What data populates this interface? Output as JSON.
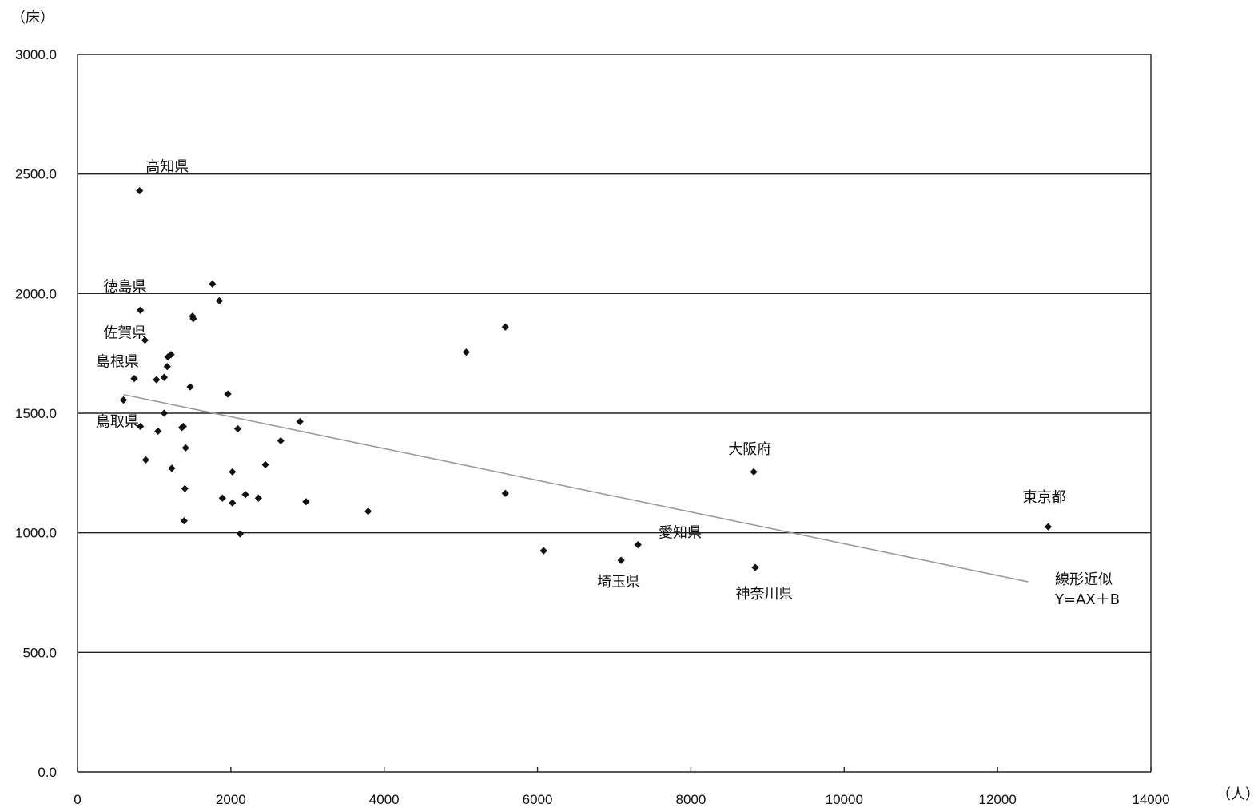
{
  "chart_data": {
    "type": "scatter",
    "y_unit": "（床）",
    "x_unit": "（人）",
    "xlim": [
      0,
      14000
    ],
    "ylim": [
      0,
      3000
    ],
    "x_ticks": [
      "0",
      "2000",
      "4000",
      "6000",
      "8000",
      "10000",
      "12000",
      "14000"
    ],
    "y_ticks": [
      "0.0",
      "500.0",
      "1000.0",
      "1500.0",
      "2000.0",
      "2500.0",
      "3000.0"
    ],
    "y_tick_values": [
      0,
      500,
      1000,
      1500,
      2000,
      2500,
      3000
    ],
    "x_tick_values": [
      0,
      2000,
      4000,
      6000,
      8000,
      10000,
      12000,
      14000
    ],
    "grid": "horizontal",
    "trendline": {
      "label_line1": "線形近似",
      "label_line2": "Y=AX＋B",
      "start": [
        600,
        1578
      ],
      "end": [
        12400,
        795
      ]
    },
    "points": [
      [
        810,
        2430
      ],
      [
        820,
        1930
      ],
      [
        880,
        1805
      ],
      [
        740,
        1645
      ],
      [
        600,
        1555
      ],
      [
        820,
        1445
      ],
      [
        890,
        1305
      ],
      [
        1030,
        1640
      ],
      [
        1130,
        1650
      ],
      [
        1170,
        1695
      ],
      [
        1180,
        1735
      ],
      [
        1220,
        1745
      ],
      [
        1130,
        1500
      ],
      [
        1050,
        1425
      ],
      [
        1230,
        1270
      ],
      [
        1360,
        1440
      ],
      [
        1380,
        1445
      ],
      [
        1410,
        1355
      ],
      [
        1400,
        1185
      ],
      [
        1390,
        1050
      ],
      [
        1470,
        1610
      ],
      [
        1500,
        1905
      ],
      [
        1510,
        1895
      ],
      [
        1760,
        2040
      ],
      [
        1850,
        1970
      ],
      [
        1960,
        1580
      ],
      [
        2020,
        1255
      ],
      [
        2020,
        1125
      ],
      [
        2090,
        1435
      ],
      [
        1890,
        1145
      ],
      [
        2190,
        1160
      ],
      [
        2120,
        995
      ],
      [
        2360,
        1145
      ],
      [
        2450,
        1285
      ],
      [
        2650,
        1385
      ],
      [
        2900,
        1465
      ],
      [
        2980,
        1130
      ],
      [
        3790,
        1090
      ],
      [
        5070,
        1755
      ],
      [
        5580,
        1860
      ],
      [
        5580,
        1165
      ],
      [
        6080,
        925
      ],
      [
        7090,
        885
      ],
      [
        7310,
        950
      ],
      [
        8820,
        1255
      ],
      [
        8840,
        855
      ],
      [
        12660,
        1025
      ]
    ],
    "annotations": [
      {
        "text": "高知県",
        "x": 1170,
        "y": 2510
      },
      {
        "text": "徳島県",
        "x": 620,
        "y": 2010
      },
      {
        "text": "佐賀県",
        "x": 620,
        "y": 1815
      },
      {
        "text": "島根県",
        "x": 520,
        "y": 1695
      },
      {
        "text": "鳥取県",
        "x": 520,
        "y": 1445
      },
      {
        "text": "大阪府",
        "x": 8770,
        "y": 1330
      },
      {
        "text": "東京都",
        "x": 12610,
        "y": 1130
      },
      {
        "text": "愛知県",
        "x": 7860,
        "y": 980
      },
      {
        "text": "埼玉県",
        "x": 7060,
        "y": 775
      },
      {
        "text": "神奈川県",
        "x": 8960,
        "y": 725
      }
    ]
  }
}
